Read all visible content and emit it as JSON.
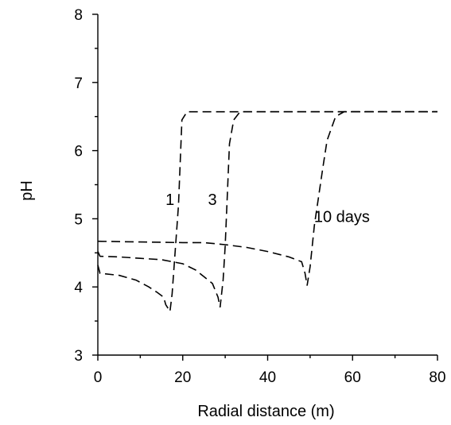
{
  "chart_data": {
    "type": "line",
    "xlabel": "Radial distance (m)",
    "ylabel": "pH",
    "xlim": [
      0,
      80
    ],
    "ylim": [
      3,
      8
    ],
    "x_ticks": [
      0,
      20,
      40,
      60,
      80
    ],
    "y_ticks": [
      3,
      4,
      5,
      6,
      7,
      8
    ],
    "grid": false,
    "line_style": "dashed",
    "colors": {
      "line": "#000000",
      "axis": "#000000",
      "background": "#ffffff"
    },
    "series": [
      {
        "name": "1",
        "label_at": [
          17,
          5.2
        ],
        "points": [
          [
            0,
            4.32
          ],
          [
            0.5,
            4.2
          ],
          [
            5,
            4.17
          ],
          [
            9,
            4.1
          ],
          [
            12,
            4.0
          ],
          [
            14,
            3.92
          ],
          [
            15.5,
            3.85
          ],
          [
            16,
            3.74
          ],
          [
            17,
            3.64
          ],
          [
            17.5,
            3.9
          ],
          [
            19,
            5.2
          ],
          [
            19.8,
            6.45
          ],
          [
            21,
            6.57
          ],
          [
            80,
            6.57
          ]
        ]
      },
      {
        "name": "3",
        "label_at": [
          27,
          5.2
        ],
        "points": [
          [
            0,
            4.52
          ],
          [
            0.5,
            4.45
          ],
          [
            5,
            4.44
          ],
          [
            10,
            4.42
          ],
          [
            15,
            4.4
          ],
          [
            20,
            4.34
          ],
          [
            23,
            4.25
          ],
          [
            25,
            4.15
          ],
          [
            27,
            4.05
          ],
          [
            28.3,
            3.85
          ],
          [
            28.8,
            3.7
          ],
          [
            29.5,
            4.1
          ],
          [
            30,
            4.6
          ],
          [
            31,
            6.1
          ],
          [
            32,
            6.45
          ],
          [
            33.5,
            6.57
          ],
          [
            80,
            6.57
          ]
        ]
      },
      {
        "name": "10 days",
        "label_at": [
          57.5,
          4.95
        ],
        "points": [
          [
            0,
            4.67
          ],
          [
            10,
            4.66
          ],
          [
            20,
            4.65
          ],
          [
            25,
            4.65
          ],
          [
            30,
            4.62
          ],
          [
            35,
            4.58
          ],
          [
            40,
            4.52
          ],
          [
            45,
            4.44
          ],
          [
            48,
            4.37
          ],
          [
            48.8,
            4.2
          ],
          [
            49.3,
            4.02
          ],
          [
            50,
            4.3
          ],
          [
            51,
            4.9
          ],
          [
            53,
            5.75
          ],
          [
            54,
            6.15
          ],
          [
            56,
            6.5
          ],
          [
            58,
            6.57
          ],
          [
            80,
            6.57
          ]
        ]
      }
    ]
  }
}
